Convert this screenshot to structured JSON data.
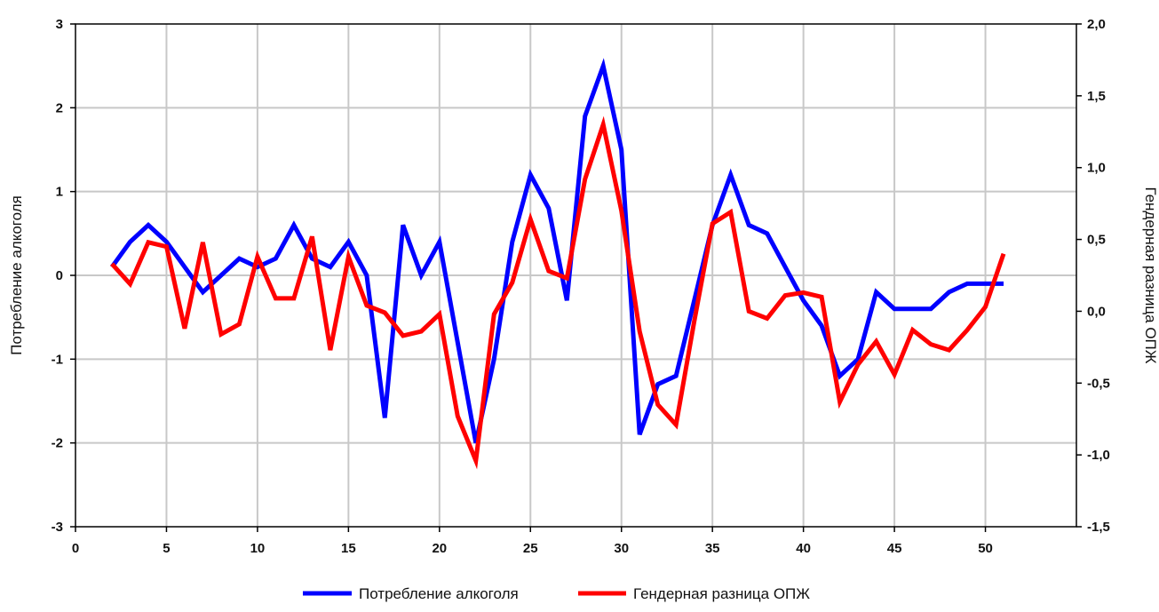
{
  "chart_data": {
    "type": "line",
    "xlim": [
      0,
      55
    ],
    "x_ticks": [
      0,
      5,
      10,
      15,
      20,
      25,
      30,
      35,
      40,
      45,
      50
    ],
    "ylabel_left": "Потребление алкоголя",
    "ylabel_right": "Гендерная разница ОПЖ",
    "ylim_left": [
      -3,
      3
    ],
    "ylim_right": [
      -1.5,
      2.0
    ],
    "y_ticks_left": [
      "3",
      "2",
      "1",
      "0",
      "-1",
      "-2",
      "-3"
    ],
    "y_ticks_right": [
      "2,0",
      "1,5",
      "1,0",
      "0,5",
      "0,0",
      "-0,5",
      "-1,0",
      "-1,5"
    ],
    "grid": true,
    "legend_position": "bottom",
    "series": [
      {
        "name": "Потребление алкоголя",
        "axis": "left",
        "color": "#0000ff",
        "x": [
          2,
          3,
          4,
          5,
          6,
          7,
          8,
          9,
          10,
          11,
          12,
          13,
          14,
          15,
          16,
          17,
          18,
          19,
          20,
          21,
          22,
          23,
          24,
          25,
          26,
          27,
          28,
          29,
          30,
          31,
          32,
          33,
          34,
          35,
          36,
          37,
          38,
          39,
          40,
          41,
          42,
          43,
          44,
          45,
          46,
          47,
          48,
          49,
          50,
          51
        ],
        "values": [
          0.1,
          0.4,
          0.6,
          0.4,
          0.1,
          -0.2,
          0.0,
          0.2,
          0.1,
          0.2,
          0.6,
          0.2,
          0.1,
          0.4,
          0.0,
          -1.7,
          0.6,
          0.0,
          0.4,
          -0.8,
          -2.0,
          -1.0,
          0.4,
          1.2,
          0.8,
          -0.3,
          1.9,
          2.5,
          1.5,
          -1.9,
          -1.3,
          -1.2,
          -0.3,
          0.6,
          1.2,
          0.6,
          0.5,
          0.1,
          -0.3,
          -0.6,
          -1.2,
          -1.0,
          -0.2,
          -0.4,
          -0.4,
          -0.4,
          -0.2,
          -0.1,
          -0.1,
          -0.1
        ]
      },
      {
        "name": "Гендерная разница ОПЖ",
        "axis": "right",
        "color": "#ff0000",
        "x": [
          2,
          3,
          4,
          5,
          6,
          7,
          8,
          9,
          10,
          11,
          12,
          13,
          14,
          15,
          16,
          17,
          18,
          19,
          20,
          21,
          22,
          23,
          24,
          25,
          26,
          27,
          28,
          29,
          30,
          31,
          32,
          33,
          34,
          35,
          36,
          37,
          38,
          39,
          40,
          41,
          42,
          43,
          44,
          45,
          46,
          47,
          48,
          49,
          50,
          51
        ],
        "values": [
          0.33,
          0.19,
          0.48,
          0.45,
          -0.12,
          0.48,
          -0.16,
          -0.09,
          0.38,
          0.09,
          0.09,
          0.52,
          -0.27,
          0.38,
          0.04,
          -0.01,
          -0.17,
          -0.14,
          -0.02,
          -0.73,
          -1.04,
          -0.02,
          0.2,
          0.64,
          0.28,
          0.23,
          0.92,
          1.3,
          0.7,
          -0.14,
          -0.65,
          -0.79,
          -0.07,
          0.61,
          0.69,
          0.0,
          -0.05,
          0.11,
          0.13,
          0.1,
          -0.63,
          -0.37,
          -0.21,
          -0.44,
          -0.13,
          -0.23,
          -0.27,
          -0.13,
          0.03,
          0.4
        ]
      }
    ]
  }
}
